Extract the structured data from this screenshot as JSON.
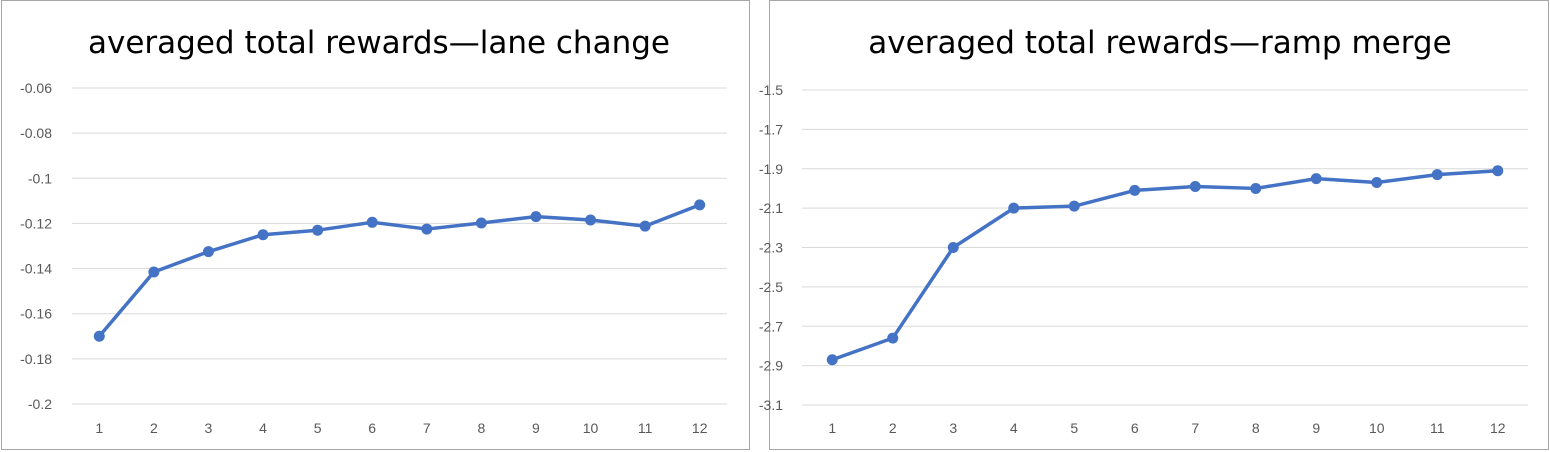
{
  "chart_data": [
    {
      "type": "line",
      "title": "averaged total rewards—lane change",
      "xlabel": "",
      "ylabel": "",
      "x": [
        1,
        2,
        3,
        4,
        5,
        6,
        7,
        8,
        9,
        10,
        11,
        12
      ],
      "series": [
        {
          "values": [
            -0.17,
            -0.1415,
            -0.1325,
            -0.125,
            -0.123,
            -0.1195,
            -0.1225,
            -0.1198,
            -0.117,
            -0.1185,
            -0.1212,
            -0.1118
          ]
        }
      ],
      "ylim": [
        -0.2,
        -0.06
      ],
      "yticks": [
        -0.06,
        -0.08,
        -0.1,
        -0.12,
        -0.14,
        -0.16,
        -0.18,
        -0.2
      ],
      "ytick_labels": [
        "-0.06",
        "-0.08",
        "-0.1",
        "-0.12",
        "-0.14",
        "-0.16",
        "-0.18",
        "-0.2"
      ],
      "grid": true,
      "legend": "none",
      "line_color": "#4472c4"
    },
    {
      "type": "line",
      "title": "averaged total rewards—ramp merge",
      "xlabel": "",
      "ylabel": "",
      "x": [
        1,
        2,
        3,
        4,
        5,
        6,
        7,
        8,
        9,
        10,
        11,
        12
      ],
      "series": [
        {
          "values": [
            -2.87,
            -2.76,
            -2.3,
            -2.1,
            -2.09,
            -2.01,
            -1.99,
            -2.0,
            -1.95,
            -1.97,
            -1.93,
            -1.91
          ]
        }
      ],
      "ylim": [
        -3.1,
        -1.5
      ],
      "yticks": [
        -1.5,
        -1.7,
        -1.9,
        -2.1,
        -2.3,
        -2.5,
        -2.7,
        -2.9,
        -3.1
      ],
      "ytick_labels": [
        "-1.5",
        "-1.7",
        "-1.9",
        "-2.1",
        "-2.3",
        "-2.5",
        "-2.7",
        "-2.9",
        "-3.1"
      ],
      "grid": true,
      "legend": "none",
      "line_color": "#4472c4"
    }
  ]
}
